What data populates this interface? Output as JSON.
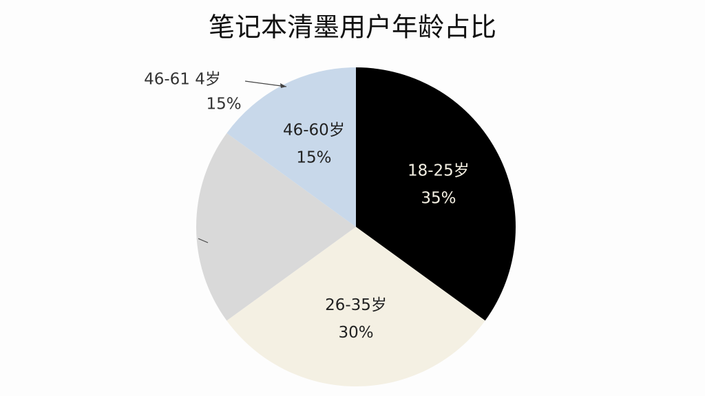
{
  "chart_data": {
    "type": "pie",
    "title": "笔记本清墨用户年龄占比",
    "categories": [
      "18-25岁",
      "26-35岁",
      null,
      "46-60岁"
    ],
    "values": [
      35,
      30,
      20,
      15
    ],
    "value_labels": [
      "35%",
      "30%",
      null,
      "15%"
    ],
    "colors": [
      "#000000",
      "#f4f0e3",
      "#d9d9d9",
      "#c8d8ea"
    ],
    "label_colors": [
      "#f4f0e3",
      "#222222",
      "#222222",
      "#222222"
    ],
    "annotations": [
      "46-61 4岁",
      "15%"
    ]
  }
}
